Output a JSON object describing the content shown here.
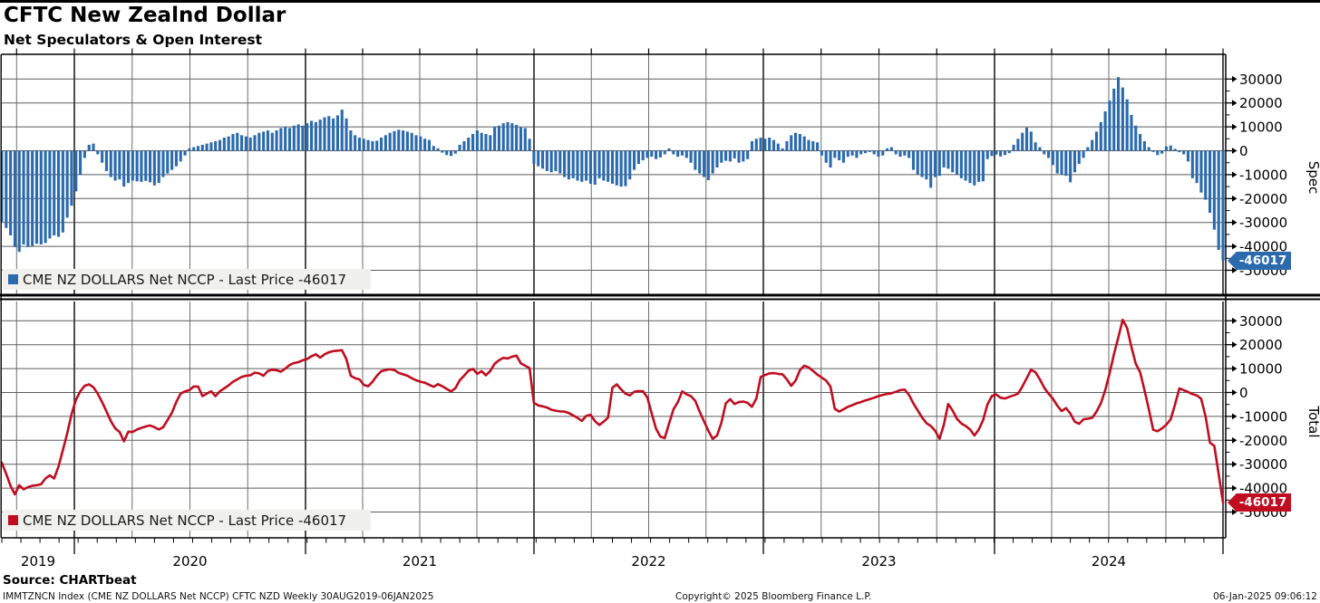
{
  "header": {
    "title": "CFTC New Zealnd Dollar",
    "subtitle": "Net Speculators & Open Interest"
  },
  "colors": {
    "spec_blue": "#2a6aad",
    "total_red": "#c00d1f",
    "legend_bg": "#f0f0ed",
    "grid_minor": "#6e6e6e",
    "grid_major": "#3a3a3a",
    "frame": "#000000",
    "tag_text": "#ffffff"
  },
  "source_line": "Source: CHARTbeat",
  "status_bar": {
    "left": "IMMTZNCN Index (CME NZ DOLLARS Net NCCP) CFTC NZD  Weekly 30AUG2019-06JAN2025",
    "center": "Copyright© 2025 Bloomberg Finance L.P.",
    "right": "06-Jan-2025 09:06:12"
  },
  "x_axis": {
    "year_labels": [
      "2019",
      "2020",
      "2021",
      "2022",
      "2023",
      "2024"
    ],
    "start": "30AUG2019",
    "end": "06JAN2025",
    "frequency": "Weekly"
  },
  "chart_data": [
    {
      "type": "bar",
      "panel": "top",
      "legend": "CME NZ DOLLARS Net NCCP - Last Price -46017",
      "axis_title": "Spec",
      "last_price": -46017,
      "last_price_label": "-46017",
      "ylim": [
        -55000,
        35000
      ],
      "y_ticks": [
        30000,
        20000,
        10000,
        0,
        -10000,
        -20000,
        -30000,
        -40000,
        -50000
      ],
      "y_minor_step": 5000,
      "values": [
        -29700,
        -32300,
        -35400,
        -40300,
        -42300,
        -39200,
        -40300,
        -39800,
        -38900,
        -39200,
        -38600,
        -36700,
        -35400,
        -36000,
        -34200,
        -28000,
        -23000,
        -17000,
        -10000,
        -3000,
        2500,
        3000,
        -1500,
        -5000,
        -8500,
        -11000,
        -12500,
        -12000,
        -15000,
        -13500,
        -12500,
        -12800,
        -13000,
        -12600,
        -13200,
        -14500,
        -13500,
        -11000,
        -9500,
        -8000,
        -6500,
        -4500,
        -2000,
        1000,
        1500,
        2000,
        2500,
        3000,
        3500,
        4000,
        4500,
        5500,
        6000,
        7000,
        7500,
        6500,
        6000,
        5500,
        6500,
        7500,
        8000,
        8500,
        7500,
        8500,
        9500,
        10000,
        9500,
        10500,
        11000,
        10500,
        11500,
        12500,
        12000,
        13000,
        14000,
        14500,
        13500,
        14800,
        17200,
        13500,
        8500,
        6500,
        5500,
        5000,
        4500,
        4000,
        4200,
        5500,
        6500,
        7500,
        8200,
        8800,
        8500,
        8000,
        7500,
        6500,
        6000,
        5000,
        4500,
        2000,
        1000,
        -800,
        -1800,
        -2200,
        -1200,
        2500,
        4000,
        5500,
        7000,
        8500,
        7500,
        7000,
        6500,
        10000,
        10500,
        11500,
        12000,
        11500,
        10800,
        9800,
        9500,
        5000,
        -5500,
        -6500,
        -7500,
        -8500,
        -9000,
        -8500,
        -9500,
        -11000,
        -12000,
        -11500,
        -12500,
        -13000,
        -12500,
        -13800,
        -14200,
        -11500,
        -12500,
        -13000,
        -13800,
        -14500,
        -15000,
        -14800,
        -12000,
        -8000,
        -5500,
        -4000,
        -3000,
        -2500,
        -3500,
        -2800,
        -1500,
        1000,
        -1500,
        -2500,
        -2000,
        -3000,
        -5000,
        -8000,
        -9500,
        -11000,
        -12300,
        -9500,
        -7000,
        -5000,
        -4200,
        -4500,
        -3200,
        -5000,
        -4500,
        -3500,
        4000,
        5000,
        5500,
        5000,
        5500,
        4500,
        3000,
        1000,
        4000,
        6500,
        7500,
        7000,
        6000,
        4500,
        4000,
        3500,
        -2000,
        -5000,
        -7000,
        -3000,
        -4000,
        -5000,
        -2500,
        -2000,
        -3000,
        -1500,
        -1000,
        -500,
        -1500,
        -2500,
        -2000,
        1000,
        1500,
        -1500,
        -2500,
        -2000,
        -3000,
        -8000,
        -10000,
        -11000,
        -12000,
        -15500,
        -11000,
        -10500,
        -7000,
        -7500,
        -9000,
        -10000,
        -11500,
        -12500,
        -13500,
        -14500,
        -13000,
        -12800,
        -3500,
        -2200,
        -1600,
        -2400,
        -1800,
        -1000,
        2500,
        5000,
        7500,
        9700,
        8000,
        3500,
        1500,
        -1500,
        -3000,
        -6000,
        -9500,
        -10000,
        -10500,
        -13200,
        -9000,
        -5500,
        -3000,
        1500,
        4500,
        8000,
        12000,
        16500,
        21000,
        26000,
        30800,
        26500,
        21500,
        15000,
        10500,
        7000,
        4000,
        1500,
        -500,
        -1800,
        -1200,
        1800,
        2200,
        800,
        -600,
        -1500,
        -4500,
        -11500,
        -13500,
        -17500,
        -20500,
        -26000,
        -33000,
        -41500,
        -46017
      ]
    },
    {
      "type": "line",
      "panel": "bottom",
      "legend": "CME NZ DOLLARS Net NCCP - Last Price -46017",
      "axis_title": "Total",
      "last_price": -46017,
      "last_price_label": "-46017",
      "ylim": [
        -55000,
        35000
      ],
      "y_ticks": [
        30000,
        20000,
        10000,
        0,
        -10000,
        -20000,
        -30000,
        -40000,
        -50000
      ],
      "y_minor_step": 5000,
      "values": [
        -29400,
        -34000,
        -39000,
        -42600,
        -38800,
        -40500,
        -39600,
        -39000,
        -38800,
        -38400,
        -36000,
        -34700,
        -36000,
        -31000,
        -24000,
        -17000,
        -9000,
        -3000,
        500,
        2800,
        3400,
        2200,
        -500,
        -4000,
        -8000,
        -12000,
        -15000,
        -16500,
        -20400,
        -16400,
        -16500,
        -15500,
        -14800,
        -14200,
        -13800,
        -14500,
        -15500,
        -14500,
        -11500,
        -8500,
        -4000,
        -500,
        500,
        1000,
        2500,
        2500,
        -1500,
        -500,
        500,
        -1500,
        500,
        1700,
        3000,
        4500,
        5500,
        6500,
        7000,
        7200,
        8300,
        8000,
        7000,
        9000,
        9500,
        9300,
        8700,
        10000,
        11500,
        12300,
        12700,
        13500,
        14000,
        15200,
        16000,
        14600,
        16000,
        16800,
        17300,
        17500,
        17700,
        14000,
        7000,
        6000,
        5500,
        3200,
        2600,
        4500,
        7000,
        8900,
        9400,
        9700,
        9400,
        8200,
        7600,
        7000,
        6000,
        5100,
        4500,
        4100,
        3200,
        2400,
        3500,
        2600,
        1500,
        400,
        1800,
        5100,
        7000,
        9100,
        9900,
        7800,
        8900,
        7200,
        9000,
        12000,
        13500,
        14500,
        14200,
        15000,
        15400,
        12200,
        11200,
        10200,
        -4300,
        -5400,
        -5800,
        -6300,
        -7200,
        -7600,
        -7900,
        -8000,
        -8600,
        -9600,
        -10600,
        -11900,
        -9800,
        -9300,
        -12000,
        -13600,
        -12200,
        -10500,
        2000,
        3400,
        1300,
        -500,
        -1200,
        300,
        600,
        500,
        -2000,
        -8700,
        -15100,
        -18500,
        -19100,
        -13000,
        -7000,
        -4000,
        500,
        -800,
        -1500,
        -3500,
        -8000,
        -12000,
        -16000,
        -19400,
        -18000,
        -12500,
        -4500,
        -2800,
        -4800,
        -4000,
        -3800,
        -4300,
        -6000,
        -2500,
        6500,
        7300,
        8000,
        8100,
        7800,
        7600,
        5500,
        2800,
        5000,
        9400,
        11200,
        10500,
        9000,
        7500,
        6200,
        5000,
        2500,
        -6800,
        -8000,
        -7000,
        -6000,
        -5300,
        -4500,
        -4000,
        -3300,
        -2800,
        -2200,
        -1500,
        -1000,
        -600,
        -300,
        300,
        1000,
        1200,
        -1000,
        -4500,
        -7500,
        -10500,
        -12800,
        -14000,
        -16000,
        -19400,
        -13500,
        -4800,
        -7500,
        -11000,
        -13000,
        -14000,
        -15500,
        -18000,
        -15500,
        -11500,
        -5000,
        -1500,
        -800,
        -2200,
        -2500,
        -1800,
        -1200,
        -500,
        2500,
        6000,
        9500,
        8500,
        5500,
        2000,
        -500,
        -2600,
        -5500,
        -7800,
        -6500,
        -8800,
        -12200,
        -13100,
        -11200,
        -11000,
        -10600,
        -8000,
        -4500,
        1000,
        8000,
        16000,
        23000,
        30400,
        27000,
        19000,
        12000,
        8500,
        1000,
        -7000,
        -15600,
        -16200,
        -15000,
        -13500,
        -11200,
        -5000,
        1700,
        1000,
        200,
        -700,
        -1200,
        -2600,
        -10000,
        -21000,
        -22300,
        -34000,
        -46017
      ]
    }
  ]
}
